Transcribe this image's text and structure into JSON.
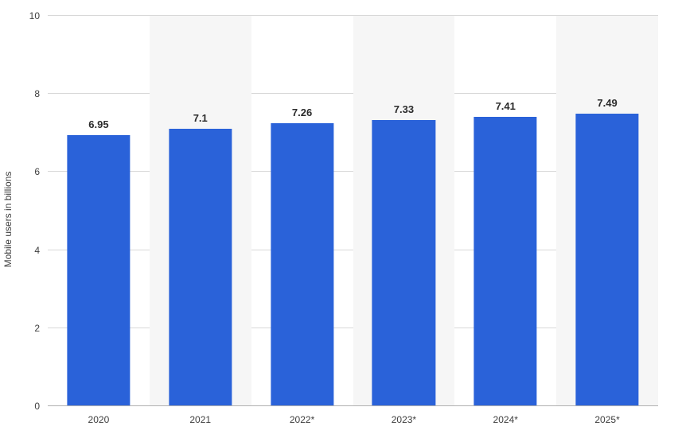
{
  "chart": {
    "type": "bar",
    "y_axis_label": "Mobile users in billions",
    "categories": [
      "2020",
      "2021",
      "2022*",
      "2023*",
      "2024*",
      "2025*"
    ],
    "values": [
      6.95,
      7.1,
      7.26,
      7.33,
      7.41,
      7.49
    ],
    "value_labels": [
      "6.95",
      "7.1",
      "7.26",
      "7.33",
      "7.41",
      "7.49"
    ],
    "bar_color": "#2a62d9",
    "ylim": [
      0,
      10
    ],
    "y_ticks": [
      0,
      2,
      4,
      6,
      8,
      10
    ],
    "grid_color": "#d8d8d8",
    "background_color": "#ffffff",
    "banding_color": "#f6f6f6",
    "bar_width_ratio": 0.62,
    "label_fontsize_pt": 12,
    "value_label_fontsize_pt": 13,
    "value_label_weight": "700",
    "axis_text_color": "#404040",
    "value_label_color": "#2b2b2b"
  }
}
